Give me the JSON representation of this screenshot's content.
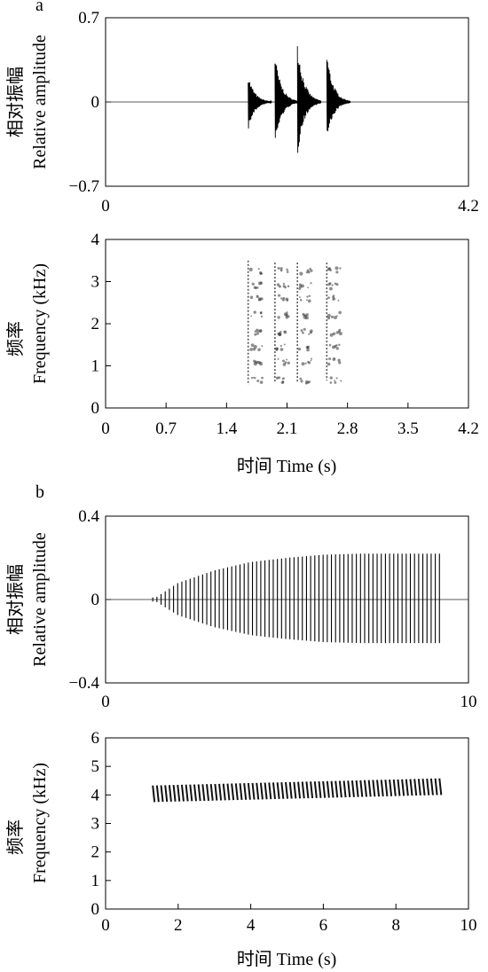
{
  "chart_data": [
    {
      "panel": "a",
      "type": "waveform",
      "ylabel_cn": "相对振幅",
      "ylabel_en": "Relative amplitude",
      "ylim": [
        -0.7,
        0.7
      ],
      "xlim": [
        0,
        4.2
      ],
      "yticks": [
        "0.7",
        "0",
        "−0.7"
      ],
      "yticks_values": [
        0.7,
        0,
        -0.7
      ],
      "xticks": [
        "0",
        "4.2"
      ],
      "xticks_values": [
        0,
        4.2
      ],
      "series": [
        {
          "values": [
            {
              "t": 1.65,
              "pos": 0.23,
              "neg": -0.24
            },
            {
              "t": 1.96,
              "pos": 0.4,
              "neg": -0.37
            },
            {
              "t": 2.22,
              "pos": 0.52,
              "neg": -0.46
            },
            {
              "t": 2.56,
              "pos": 0.42,
              "neg": -0.34
            }
          ]
        }
      ]
    },
    {
      "panel": "a",
      "type": "spectrogram",
      "ylabel_cn": "频率",
      "ylabel_en": "Frequency (kHz)",
      "xlabel": "时间 Time (s)",
      "ylim": [
        0,
        4
      ],
      "xlim": [
        0,
        4.2
      ],
      "yticks": [
        "0",
        "1",
        "2",
        "3",
        "4"
      ],
      "yticks_values": [
        0,
        1,
        2,
        3,
        4
      ],
      "xticks": [
        "0",
        "0.7",
        "1.4",
        "2.1",
        "2.8",
        "3.5",
        "4.2"
      ],
      "xticks_values": [
        0,
        0.7,
        1.4,
        2.1,
        2.8,
        3.5,
        4.2
      ],
      "notes": [
        {
          "t": 1.65,
          "f_low": 0.55,
          "f_high": 3.5
        },
        {
          "t": 1.96,
          "f_low": 0.6,
          "f_high": 3.45
        },
        {
          "t": 2.22,
          "f_low": 0.6,
          "f_high": 3.45
        },
        {
          "t": 2.56,
          "f_low": 0.65,
          "f_high": 3.45
        }
      ]
    },
    {
      "panel": "b",
      "type": "waveform",
      "ylabel_cn": "相对振幅",
      "ylabel_en": "Relative amplitude",
      "ylim": [
        -0.4,
        0.4
      ],
      "xlim": [
        0,
        10
      ],
      "yticks": [
        "0.4",
        "0",
        "−0.4"
      ],
      "yticks_values": [
        0.4,
        0,
        -0.4
      ],
      "xticks": [
        "0",
        "10"
      ],
      "xticks_values": [
        0,
        10
      ],
      "series": [
        {
          "envelope": [
            {
              "t": 1.3,
              "amp": 0.0
            },
            {
              "t": 2.0,
              "amp": 0.08
            },
            {
              "t": 3.0,
              "amp": 0.14
            },
            {
              "t": 4.0,
              "amp": 0.18
            },
            {
              "t": 5.0,
              "amp": 0.2
            },
            {
              "t": 6.0,
              "amp": 0.215
            },
            {
              "t": 7.0,
              "amp": 0.22
            },
            {
              "t": 8.0,
              "amp": 0.22
            },
            {
              "t": 9.2,
              "amp": 0.22
            }
          ],
          "pulse_start": 1.3,
          "pulse_end": 9.2,
          "pulse_count": 70
        }
      ]
    },
    {
      "panel": "b",
      "type": "spectrogram",
      "ylabel_cn": "频率",
      "ylabel_en": "Frequency (kHz)",
      "xlabel": "时间 Time (s)",
      "ylim": [
        0,
        6
      ],
      "xlim": [
        0,
        10
      ],
      "yticks": [
        "0",
        "1",
        "2",
        "3",
        "4",
        "5",
        "6"
      ],
      "yticks_values": [
        0,
        1,
        2,
        3,
        4,
        5,
        6
      ],
      "xticks": [
        "0",
        "2",
        "4",
        "6",
        "8",
        "10"
      ],
      "xticks_values": [
        0,
        2,
        4,
        6,
        8,
        10
      ],
      "band": {
        "t_start": 1.3,
        "t_end": 9.2,
        "f_center_start": 4.05,
        "f_center_end": 4.3,
        "pulse_count": 70
      }
    }
  ],
  "panel_labels": [
    "a",
    "b"
  ]
}
